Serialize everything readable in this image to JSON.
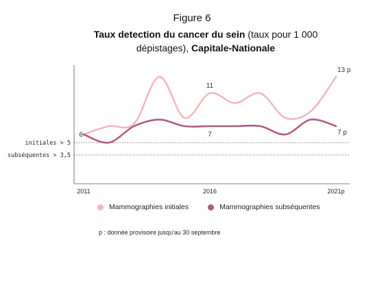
{
  "figure_label": "Figure 6",
  "title": {
    "bold_1": "Taux detection du cancer du sein",
    "normal": " (taux pour 1 000 dépistages), ",
    "bold_2": "Capitale-Nationale"
  },
  "chart_data": {
    "type": "line",
    "x_tick_labels": [
      "2011",
      "2016",
      "2021p"
    ],
    "x": [
      2011,
      2012,
      2013,
      2014,
      2015,
      2016,
      2017,
      2018,
      2019,
      2020,
      2021
    ],
    "ylim": [
      0,
      16
    ],
    "series": [
      {
        "name": "Mammographies initiales",
        "color": "#f2b8bd",
        "values": [
          6.0,
          7.0,
          7.3,
          13.0,
          8.0,
          11.0,
          9.8,
          11.0,
          8.0,
          8.8,
          13.0
        ]
      },
      {
        "name": "Mammographies subséquentes",
        "color": "#b05a86",
        "values": [
          6.0,
          5.0,
          7.0,
          7.8,
          7.0,
          7.0,
          7.0,
          7.0,
          6.0,
          7.8,
          7.0
        ]
      }
    ],
    "reference_lines": [
      {
        "label": "initiales > 5",
        "value": 5
      },
      {
        "label": "subséquentes > 3,5",
        "value": 3.5
      }
    ],
    "annotations": [
      {
        "text": "6",
        "series": 0,
        "index": 0
      },
      {
        "text": "11",
        "series": 0,
        "index": 5
      },
      {
        "text": "13 p",
        "series": 0,
        "index": 10
      },
      {
        "text": "7",
        "series": 1,
        "index": 5
      },
      {
        "text": "7 p",
        "series": 1,
        "index": 10
      }
    ]
  },
  "note": "p : donnée provisoire jusqu'au 30 septembre"
}
